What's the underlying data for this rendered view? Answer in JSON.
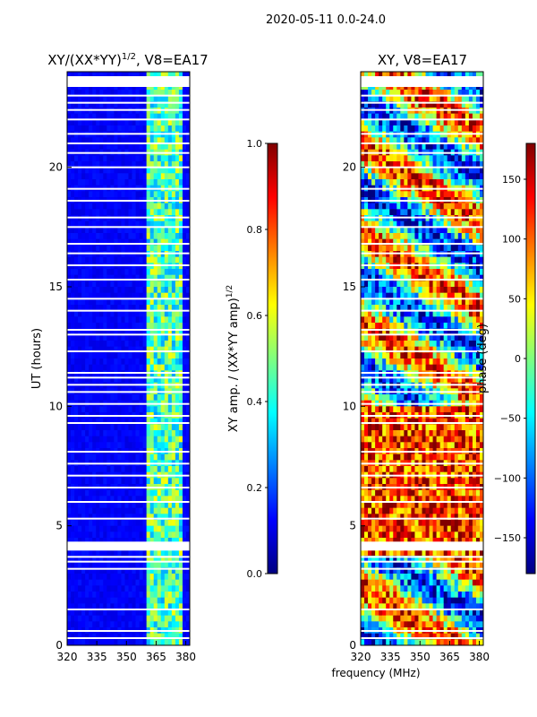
{
  "header": {
    "date_range": "2020-05-11 0.0-24.0"
  },
  "chart_data": [
    {
      "type": "heatmap",
      "title": "XY/(XX*YY)^1/2, V8=EA17",
      "title_main": "XY/(XX*YY)",
      "title_exp": "1/2",
      "title_suffix": ", V8=EA17",
      "xlabel": "frequency (MHz)",
      "ylabel": "UT (hours)",
      "xlim": [
        320,
        382
      ],
      "ylim": [
        0,
        24
      ],
      "xticks": [
        320,
        335,
        350,
        365,
        380
      ],
      "yticks": [
        0,
        5,
        10,
        15,
        20
      ],
      "colorbar": {
        "label_main": "XY amp. / (XX*YY amp)",
        "label_exp": "1/2",
        "range": [
          0.0,
          1.0
        ],
        "ticks": [
          "0.0",
          "0.2",
          "0.4",
          "0.6",
          "0.8",
          "1.0"
        ],
        "colormap": "jet"
      },
      "description_values": {
        "background_level": 0.12,
        "band_range_mhz": [
          360,
          378
        ],
        "band_level": 0.45
      }
    },
    {
      "type": "heatmap",
      "title": "XY, V8=EA17",
      "xlabel": "frequency (MHz)",
      "xlim": [
        320,
        382
      ],
      "ylim": [
        0,
        24
      ],
      "xticks": [
        320,
        335,
        350,
        365,
        380
      ],
      "yticks": [
        0,
        5,
        10,
        15,
        20
      ],
      "colorbar": {
        "label": "phase (deg)",
        "range": [
          -180,
          180
        ],
        "ticks": [
          "150",
          "100",
          "50",
          "0",
          "−50",
          "−100",
          "−150"
        ],
        "colormap": "jet"
      }
    }
  ],
  "flagged_hours": [
    0.3,
    0.6,
    1.5,
    3.2,
    3.5,
    3.7,
    4.1,
    4.2,
    4.3,
    5.3,
    6.0,
    6.6,
    7.1,
    7.6,
    8.1,
    9.3,
    9.6,
    10.1,
    10.6,
    10.9,
    11.2,
    11.4,
    12.3,
    13.0,
    13.2,
    14.0,
    14.5,
    15.3,
    15.9,
    16.4,
    16.8,
    17.5,
    17.9,
    18.6,
    19.1,
    20.0,
    20.6,
    21.0,
    21.4,
    22.0,
    22.4,
    22.7,
    23.0,
    23.4,
    23.7
  ]
}
